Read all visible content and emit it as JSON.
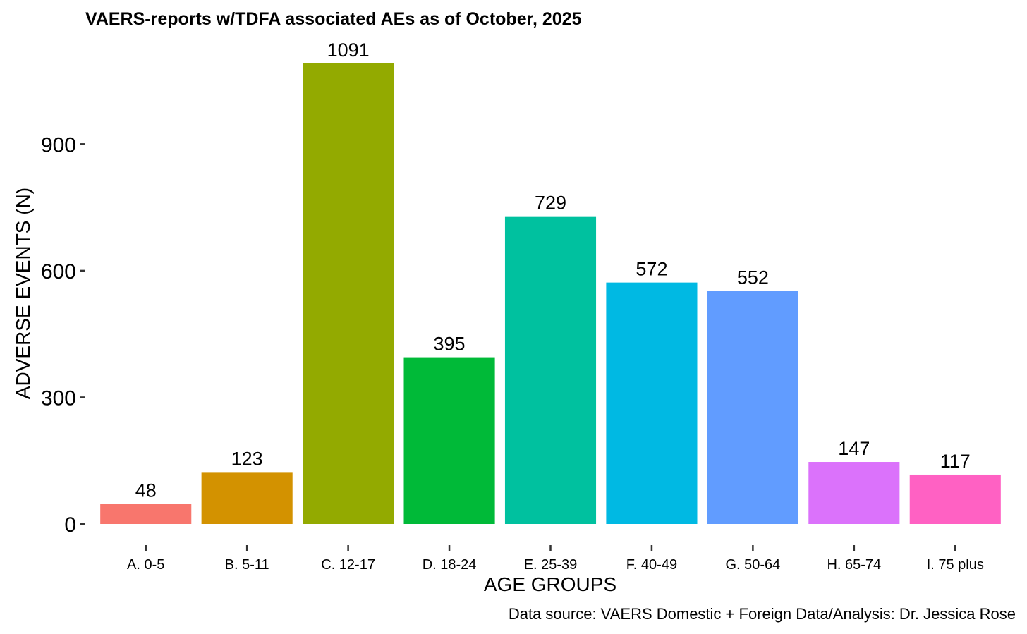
{
  "chart_data": {
    "type": "bar",
    "title": "VAERS-reports w/TDFA associated AEs as of October, 2025",
    "xlabel": "AGE GROUPS",
    "ylabel": "ADVERSE EVENTS (N)",
    "caption": "Data source: VAERS Domestic + Foreign Data/Analysis: Dr. Jessica Rose",
    "categories": [
      "A. 0-5",
      "B. 5-11",
      "C. 12-17",
      "D. 18-24",
      "E. 25-39",
      "F. 40-49",
      "G. 50-64",
      "H. 65-74",
      "I. 75 plus"
    ],
    "values": [
      48,
      123,
      1091,
      395,
      729,
      572,
      552,
      147,
      117
    ],
    "colors": [
      "#F8766D",
      "#D39200",
      "#93AA00",
      "#00BA38",
      "#00C19F",
      "#00B9E3",
      "#619CFF",
      "#DB72FB",
      "#FF61C3"
    ],
    "yticks": [
      0,
      300,
      600,
      900
    ],
    "ytick_labels": [
      "0",
      "300",
      "600",
      "900"
    ],
    "ylim": [
      0,
      1091
    ],
    "grid": false,
    "legend": "none"
  }
}
